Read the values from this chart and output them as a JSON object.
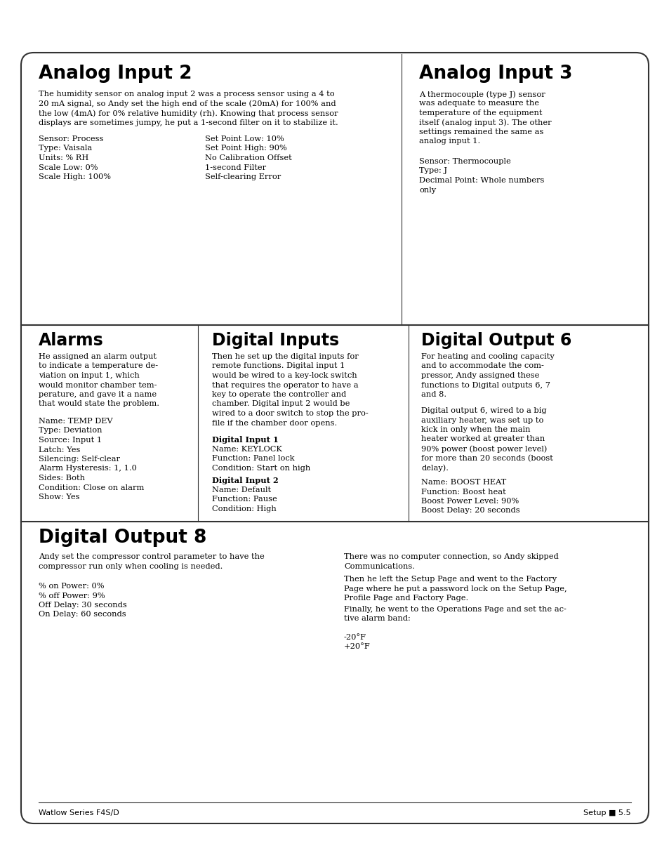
{
  "page_bg": "#ffffff",
  "border_color": "#333333",
  "text_color": "#000000",
  "line_color": "#333333",
  "section1_title": "Analog Input 2",
  "section1_body_lines": [
    "The humidity sensor on analog input 2 was a process sensor using a 4 to",
    "20 mA signal, so Andy set the high end of the scale (20mA) for 100% and",
    "the low (4mA) for 0% relative humidity (rh). Knowing that process sensor",
    "displays are sometimes jumpy, he put a 1-second filter on it to stabilize it."
  ],
  "section1_list_left": [
    "Sensor: Process",
    "Type: Vaisala",
    "Units: % RH",
    "Scale Low: 0%",
    "Scale High: 100%"
  ],
  "section1_list_right": [
    "Set Point Low: 10%",
    "Set Point High: 90%",
    "No Calibration Offset",
    "1-second Filter",
    "Self-clearing Error"
  ],
  "section2_title": "Analog Input 3",
  "section2_body_lines": [
    "A thermocouple (type J) sensor",
    "was adequate to measure the",
    "temperature of the equipment",
    "itself (analog input 3). The other",
    "settings remained the same as",
    "analog input 1."
  ],
  "section2_list": [
    "Sensor: Thermocouple",
    "Type: J",
    "Decimal Point: Whole numbers",
    "only"
  ],
  "section3_title": "Alarms",
  "section3_body_lines": [
    "He assigned an alarm output",
    "to indicate a temperature de-",
    "viation on input 1, which",
    "would monitor chamber tem-",
    "perature, and gave it a name",
    "that would state the problem."
  ],
  "section3_list": [
    "Name: TEMP DEV",
    "Type: Deviation",
    "Source: Input 1",
    "Latch: Yes",
    "Silencing: Self-clear",
    "Alarm Hysteresis: 1, 1.0",
    "Sides: Both",
    "Condition: Close on alarm",
    "Show: Yes"
  ],
  "section4_title": "Digital Inputs",
  "section4_body_lines": [
    "Then he set up the digital inputs for",
    "remote functions. Digital input 1",
    "would be wired to a key-lock switch",
    "that requires the operator to have a",
    "key to operate the controller and",
    "chamber. Digital input 2 would be",
    "wired to a door switch to stop the pro-",
    "file if the chamber door opens."
  ],
  "section4_sub1_title": "Digital Input 1",
  "section4_sub1_list": [
    "Name: KEYLOCK",
    "Function: Panel lock",
    "Condition: Start on high"
  ],
  "section4_sub2_title": "Digital Input 2",
  "section4_sub2_list": [
    "Name: Default",
    "Function: Pause",
    "Condition: High"
  ],
  "section5_title": "Digital Output 6",
  "section5_body1_lines": [
    "For heating and cooling capacity",
    "and to accommodate the com-",
    "pressor, Andy assigned these",
    "functions to Digital outputs 6, 7",
    "and 8."
  ],
  "section5_body2_lines": [
    "Digital output 6, wired to a big",
    "auxiliary heater, was set up to",
    "kick in only when the main",
    "heater worked at greater than",
    "90% power (boost power level)",
    "for more than 20 seconds (boost",
    "delay)."
  ],
  "section5_list": [
    "Name: BOOST HEAT",
    "Function: Boost heat",
    "Boost Power Level: 90%",
    "Boost Delay: 20 seconds"
  ],
  "section6_title": "Digital Output 8",
  "section6_body_lines": [
    "Andy set the compressor control parameter to have the",
    "compressor run only when cooling is needed."
  ],
  "section6_list": [
    "% on Power: 0%",
    "% off Power: 9%",
    "Off Delay: 30 seconds",
    "On Delay: 60 seconds"
  ],
  "section6_right1": "There was no computer connection, so Andy skipped Communications.",
  "section6_right2_lines": [
    "Then he left the Setup Page and went to the Factory",
    "Page where he put a password lock on the Setup Page,",
    "Profile Page and Factory Page."
  ],
  "section6_right3_lines": [
    "Finally, he went to the Operations Page and set the ac-",
    "tive alarm band:"
  ],
  "section6_list2": [
    "-20°F",
    "+20°F"
  ],
  "footer_left": "Watlow Series F4S/D",
  "footer_right": "Setup ■ 5.5"
}
